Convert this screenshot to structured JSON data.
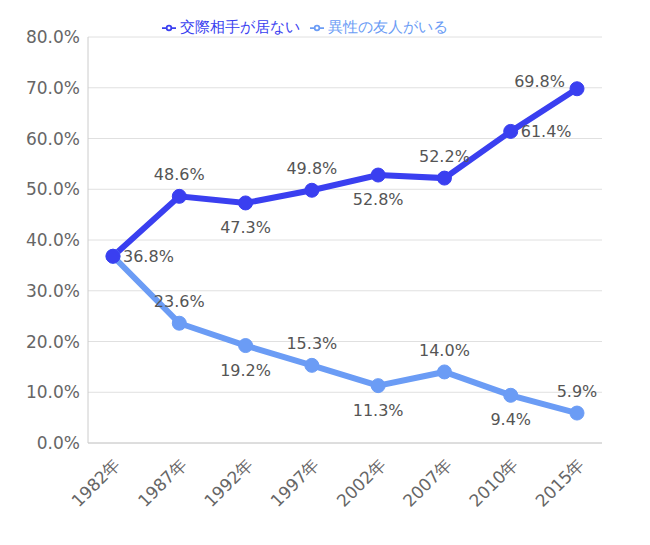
{
  "chart_data": {
    "type": "line",
    "categories": [
      "1982年",
      "1987年",
      "1992年",
      "1997年",
      "2002年",
      "2007年",
      "2010年",
      "2015年"
    ],
    "series": [
      {
        "name": "異性の友人がいる",
        "color": "#6b9cf5",
        "marker": "circle",
        "line_style": "solid",
        "values": [
          36.8,
          23.6,
          19.2,
          15.3,
          11.3,
          14.0,
          9.4,
          5.9
        ],
        "value_labels": [
          null,
          "23.6%",
          "19.2%",
          "15.3%",
          "11.3%",
          "14.0%",
          "9.4%",
          "5.9%"
        ]
      },
      {
        "name": "交際相手が居ない",
        "color": "#3a3ff0",
        "marker": "circle",
        "line_style": "solid",
        "values": [
          36.8,
          48.6,
          47.3,
          49.8,
          52.8,
          52.2,
          61.4,
          69.8
        ],
        "value_labels": [
          "36.8%",
          "48.6%",
          "47.3%",
          "49.8%",
          "52.8%",
          "52.2%",
          "61.4%",
          "69.8%"
        ]
      }
    ],
    "ylim": [
      0,
      80
    ],
    "yticks": [
      {
        "value": 0,
        "label": "0.0%"
      },
      {
        "value": 10,
        "label": "10.0%"
      },
      {
        "value": 20,
        "label": "20.0%"
      },
      {
        "value": 30,
        "label": "30.0%"
      },
      {
        "value": 40,
        "label": "40.0%"
      },
      {
        "value": 50,
        "label": "50.0%"
      },
      {
        "value": 60,
        "label": "60.0%"
      },
      {
        "value": 70,
        "label": "70.0%"
      },
      {
        "value": 80,
        "label": "80.0%"
      }
    ],
    "grid": true,
    "legend": "top",
    "data_labels": true
  }
}
